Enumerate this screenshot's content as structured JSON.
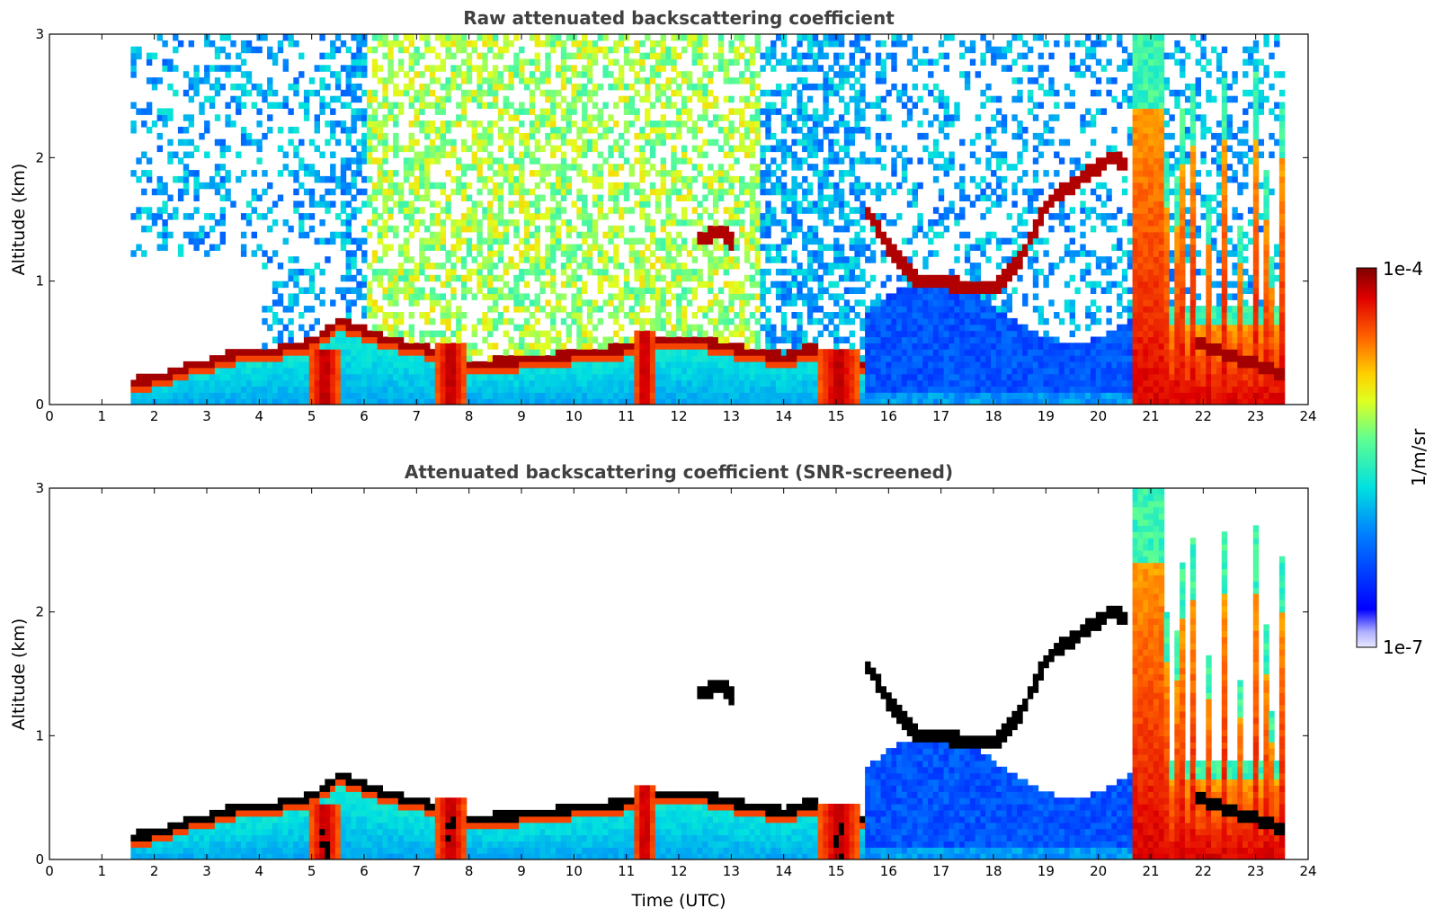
{
  "chart_data": {
    "type": "heatmap",
    "colormap": "jet",
    "colorbar": {
      "unit_label": "1/m/sr",
      "max_label": "1e-4",
      "min_label": "1e-7",
      "range": [
        1e-07,
        0.0001
      ],
      "scale": "log"
    },
    "panels": [
      {
        "id": "raw",
        "title": "Raw attenuated backscattering coefficient",
        "ylabel": "Altitude (km)",
        "xlabel": "",
        "xlim": [
          0,
          24
        ],
        "ylim": [
          0,
          3
        ],
        "xticks": [
          "0",
          "1",
          "2",
          "3",
          "4",
          "5",
          "6",
          "7",
          "8",
          "9",
          "10",
          "11",
          "12",
          "13",
          "14",
          "15",
          "16",
          "17",
          "18",
          "19",
          "20",
          "21",
          "22",
          "23",
          "24"
        ],
        "yticks": [
          "0",
          "1",
          "2",
          "3"
        ],
        "screened": false
      },
      {
        "id": "screened",
        "title": "Attenuated backscattering coefficient (SNR-screened)",
        "ylabel": "Altitude (km)",
        "xlabel": "Time (UTC)",
        "xlim": [
          0,
          24
        ],
        "ylim": [
          0,
          3
        ],
        "xticks": [
          "0",
          "1",
          "2",
          "3",
          "4",
          "5",
          "6",
          "7",
          "8",
          "9",
          "10",
          "11",
          "12",
          "13",
          "14",
          "15",
          "16",
          "17",
          "18",
          "19",
          "20",
          "21",
          "22",
          "23",
          "24"
        ],
        "yticks": [
          "0",
          "1",
          "2",
          "3"
        ],
        "screened": true
      }
    ],
    "data_start_utc": 1.55,
    "data_end_utc": 23.55,
    "boundary_layer_top_km": [
      [
        1.55,
        0.22
      ],
      [
        2,
        0.25
      ],
      [
        2.5,
        0.33
      ],
      [
        3,
        0.38
      ],
      [
        3.5,
        0.45
      ],
      [
        4,
        0.45
      ],
      [
        4.5,
        0.5
      ],
      [
        5,
        0.55
      ],
      [
        5.5,
        0.72
      ],
      [
        6,
        0.62
      ],
      [
        6.5,
        0.55
      ],
      [
        7,
        0.5
      ],
      [
        7.5,
        0.45
      ],
      [
        8,
        0.35
      ],
      [
        8.5,
        0.38
      ],
      [
        9,
        0.4
      ],
      [
        9.5,
        0.42
      ],
      [
        10,
        0.45
      ],
      [
        10.5,
        0.47
      ],
      [
        11,
        0.5
      ],
      [
        11.5,
        0.55
      ],
      [
        12,
        0.55
      ],
      [
        12.5,
        0.55
      ],
      [
        13,
        0.5
      ],
      [
        13.5,
        0.45
      ],
      [
        14,
        0.42
      ],
      [
        14.5,
        0.5
      ],
      [
        15,
        0.4
      ],
      [
        15.5,
        0.35
      ]
    ],
    "cloud_layer_km": [
      [
        12.3,
        1.35
      ],
      [
        12.8,
        1.4
      ],
      [
        13,
        1.3
      ],
      [
        15.5,
        1.6
      ],
      [
        16,
        1.25
      ],
      [
        16.5,
        1.0
      ],
      [
        17,
        1.0
      ],
      [
        17.5,
        0.95
      ],
      [
        18,
        0.95
      ],
      [
        18.5,
        1.2
      ],
      [
        19,
        1.65
      ],
      [
        20.2,
        2.0
      ],
      [
        20.5,
        1.95
      ]
    ],
    "strong_plumes_utc": [
      {
        "start": 4.9,
        "end": 5.5,
        "top_km": 0.45
      },
      {
        "start": 7.3,
        "end": 7.9,
        "top_km": 0.5
      },
      {
        "start": 11.1,
        "end": 11.5,
        "top_km": 0.6
      },
      {
        "start": 14.6,
        "end": 15.4,
        "top_km": 0.45
      },
      {
        "start": 20.6,
        "end": 23.5,
        "top_km": 3.0
      }
    ]
  }
}
